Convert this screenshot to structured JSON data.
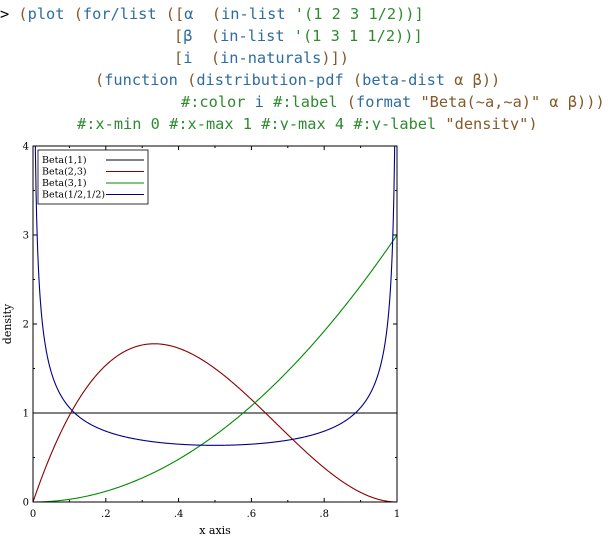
{
  "repl": {
    "lines": [
      [
        {
          "text": "> ",
          "k": "prompt"
        },
        {
          "text": "(",
          "k": "paren"
        },
        {
          "text": "plot",
          "k": "id"
        },
        {
          "text": " (",
          "k": "paren"
        },
        {
          "text": "for/list",
          "k": "id"
        },
        {
          "text": " ([",
          "k": "paren"
        },
        {
          "text": "α",
          "k": "id"
        },
        {
          "text": "  (",
          "k": "paren"
        },
        {
          "text": "in-list",
          "k": "id"
        },
        {
          "text": " '(1 2 3 1/2))]",
          "k": "const"
        }
      ],
      [
        {
          "text": "[",
          "k": "paren"
        },
        {
          "text": "β",
          "k": "id"
        },
        {
          "text": "  (",
          "k": "paren"
        },
        {
          "text": "in-list",
          "k": "id"
        },
        {
          "text": " '(1 3 1 1/2))]",
          "k": "const"
        }
      ],
      [
        {
          "text": "[",
          "k": "paren"
        },
        {
          "text": "i",
          "k": "id"
        },
        {
          "text": "  (",
          "k": "paren"
        },
        {
          "text": "in-naturals",
          "k": "id"
        },
        {
          "text": ")])",
          "k": "paren"
        }
      ],
      [
        {
          "text": "(",
          "k": "paren"
        },
        {
          "text": "function",
          "k": "id"
        },
        {
          "text": " (",
          "k": "paren"
        },
        {
          "text": "distribution-pdf",
          "k": "id"
        },
        {
          "text": " (",
          "k": "paren"
        },
        {
          "text": "beta-dist",
          "k": "id"
        },
        {
          "text": " α β))",
          "k": "paren"
        }
      ],
      [
        {
          "text": "#:color",
          "k": "const"
        },
        {
          "text": " i ",
          "k": "id"
        },
        {
          "text": "#:label",
          "k": "const"
        },
        {
          "text": " (",
          "k": "paren"
        },
        {
          "text": "format",
          "k": "id"
        },
        {
          "text": " \"Beta(~a,~a)\"",
          "k": "str"
        },
        {
          "text": " α β)))",
          "k": "paren"
        }
      ],
      [
        {
          "text": "#:x-min",
          "k": "const"
        },
        {
          "text": " 0 ",
          "k": "const"
        },
        {
          "text": "#:x-max",
          "k": "const"
        },
        {
          "text": " 1 ",
          "k": "const"
        },
        {
          "text": "#:y-max",
          "k": "const"
        },
        {
          "text": " 4 ",
          "k": "const"
        },
        {
          "text": "#:y-label",
          "k": "const"
        },
        {
          "text": " \"density\"",
          "k": "str"
        },
        {
          "text": ")",
          "k": "paren"
        }
      ]
    ]
  },
  "colors": {
    "prompt": "#000000",
    "paren": "#845a29",
    "id": "#2d6d9f",
    "const": "#2f8a2f",
    "str": "#845a29",
    "series": [
      "#000000",
      "#8b0000",
      "#008b00",
      "#00008b"
    ]
  },
  "chart_data": {
    "type": "line",
    "title": "",
    "xlabel": "x axis",
    "ylabel": "density",
    "xlim": [
      0,
      1
    ],
    "ylim": [
      0,
      4
    ],
    "x_ticks": [
      {
        "v": 0,
        "label": "0"
      },
      {
        "v": 0.2,
        "label": ".2"
      },
      {
        "v": 0.4,
        "label": ".4"
      },
      {
        "v": 0.6,
        "label": ".6"
      },
      {
        "v": 0.8,
        "label": ".8"
      },
      {
        "v": 1,
        "label": "1"
      }
    ],
    "y_ticks": [
      {
        "v": 0,
        "label": "0"
      },
      {
        "v": 1,
        "label": "1"
      },
      {
        "v": 2,
        "label": "2"
      },
      {
        "v": 3,
        "label": "3"
      },
      {
        "v": 4,
        "label": "4"
      }
    ],
    "legend_position": "top-left",
    "grid": false,
    "series": [
      {
        "name": "Beta(1,1)",
        "alpha": 1,
        "beta": 1,
        "x": [
          0,
          0.1,
          0.2,
          0.3,
          0.4,
          0.5,
          0.6,
          0.7,
          0.8,
          0.9,
          1
        ],
        "y": [
          1,
          1,
          1,
          1,
          1,
          1,
          1,
          1,
          1,
          1,
          1
        ]
      },
      {
        "name": "Beta(2,3)",
        "alpha": 2,
        "beta": 3,
        "x": [
          0,
          0.1,
          0.2,
          0.3,
          0.333,
          0.4,
          0.5,
          0.6,
          0.7,
          0.8,
          0.9,
          1
        ],
        "y": [
          0,
          0.972,
          1.536,
          1.764,
          1.778,
          1.728,
          1.5,
          1.152,
          0.756,
          0.384,
          0.108,
          0
        ]
      },
      {
        "name": "Beta(3,1)",
        "alpha": 3,
        "beta": 1,
        "x": [
          0,
          0.1,
          0.2,
          0.3,
          0.4,
          0.5,
          0.6,
          0.7,
          0.8,
          0.9,
          1
        ],
        "y": [
          0,
          0.03,
          0.12,
          0.27,
          0.48,
          0.75,
          1.08,
          1.47,
          1.92,
          2.43,
          3
        ]
      },
      {
        "name": "Beta(1/2,1/2)",
        "alpha": 0.5,
        "beta": 0.5,
        "x": [
          0.005,
          0.01,
          0.02,
          0.05,
          0.1,
          0.2,
          0.3,
          0.4,
          0.5,
          0.6,
          0.7,
          0.8,
          0.9,
          0.95,
          0.98,
          0.99,
          0.995
        ],
        "y": [
          4.5,
          3.2,
          2.274,
          1.461,
          1.061,
          0.796,
          0.695,
          0.65,
          0.637,
          0.65,
          0.695,
          0.796,
          1.061,
          1.461,
          2.274,
          3.2,
          4.5
        ]
      }
    ]
  }
}
